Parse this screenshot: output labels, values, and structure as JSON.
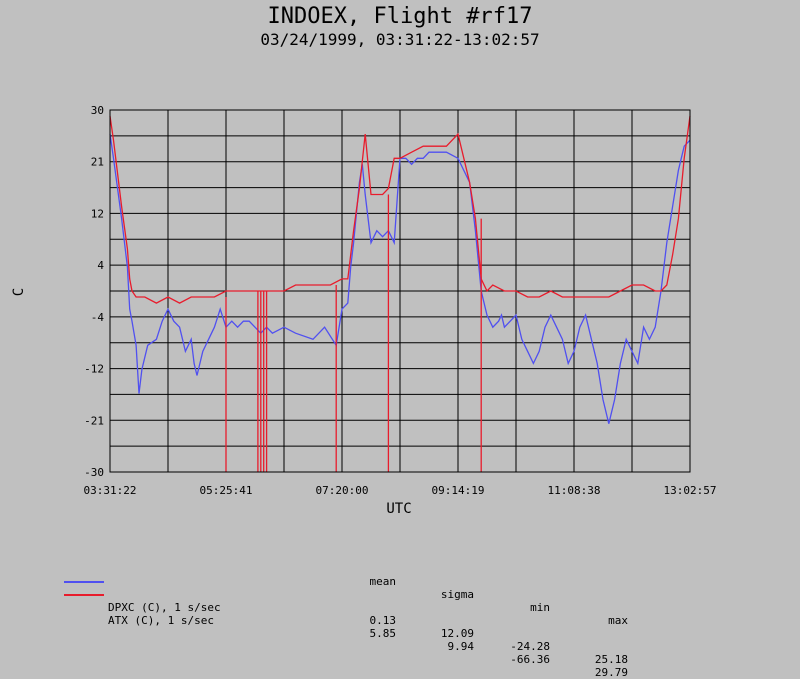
{
  "header": {
    "title": "INDOEX, Flight #rf17",
    "subtitle": "03/24/1999, 03:31:22-13:02:57"
  },
  "chart_data": {
    "type": "line",
    "xlabel": "UTC",
    "ylabel": "C",
    "x_ticks": [
      "03:31:22",
      "05:25:41",
      "07:20:00",
      "09:14:19",
      "11:08:38",
      "13:02:57"
    ],
    "y_ticks": [
      "30",
      "21",
      "12",
      "4",
      "-4",
      "-12",
      "-21",
      "-30"
    ],
    "ylim": [
      -30,
      30
    ],
    "grid": true,
    "legend_position": "bottom-left",
    "series": [
      {
        "name": "DPXC (C), 1 s/sec",
        "color": "#5050f0",
        "x_frac": [
          0,
          0.006,
          0.02,
          0.03,
          0.034,
          0.038,
          0.045,
          0.05,
          0.055,
          0.065,
          0.08,
          0.09,
          0.1,
          0.11,
          0.12,
          0.13,
          0.14,
          0.145,
          0.15,
          0.16,
          0.17,
          0.18,
          0.19,
          0.2,
          0.21,
          0.22,
          0.23,
          0.24,
          0.25,
          0.26,
          0.27,
          0.28,
          0.3,
          0.32,
          0.35,
          0.37,
          0.39,
          0.4,
          0.41,
          0.415,
          0.42,
          0.43,
          0.435,
          0.44,
          0.45,
          0.46,
          0.47,
          0.48,
          0.49,
          0.5,
          0.51,
          0.52,
          0.53,
          0.54,
          0.55,
          0.58,
          0.6,
          0.62,
          0.63,
          0.64,
          0.65,
          0.66,
          0.67,
          0.675,
          0.68,
          0.69,
          0.7,
          0.71,
          0.72,
          0.73,
          0.74,
          0.75,
          0.76,
          0.77,
          0.78,
          0.79,
          0.8,
          0.81,
          0.82,
          0.83,
          0.84,
          0.85,
          0.86,
          0.87,
          0.88,
          0.89,
          0.9,
          0.91,
          0.92,
          0.93,
          0.94,
          0.95,
          0.96,
          0.97,
          0.98,
          0.99,
          1.0
        ],
        "values": [
          26,
          22,
          12,
          4,
          -3,
          -5,
          -9,
          -17,
          -13,
          -9,
          -8,
          -5,
          -3,
          -5,
          -6,
          -10,
          -8,
          -12,
          -14,
          -10,
          -8,
          -6,
          -3,
          -6,
          -5,
          -6,
          -5,
          -5,
          -6,
          -7,
          -6,
          -7,
          -6,
          -7,
          -8,
          -6,
          -9,
          -3,
          -2,
          4,
          8,
          18,
          21,
          16,
          8,
          10,
          9,
          10,
          8,
          22,
          22,
          21,
          22,
          22,
          23,
          23,
          22,
          18,
          10,
          0,
          -4,
          -6,
          -5,
          -4,
          -6,
          -5,
          -4,
          -8,
          -10,
          -12,
          -10,
          -6,
          -4,
          -6,
          -8,
          -12,
          -10,
          -6,
          -4,
          -8,
          -12,
          -18,
          -22,
          -18,
          -12,
          -8,
          -10,
          -12,
          -6,
          -8,
          -6,
          0,
          8,
          14,
          20,
          24,
          25
        ]
      },
      {
        "name": "ATX (C), 1 s/sec",
        "color": "#e81c2c",
        "x_frac": [
          0,
          0.006,
          0.02,
          0.03,
          0.034,
          0.038,
          0.045,
          0.05,
          0.06,
          0.08,
          0.1,
          0.12,
          0.14,
          0.16,
          0.18,
          0.2,
          0.22,
          0.24,
          0.26,
          0.28,
          0.3,
          0.32,
          0.34,
          0.36,
          0.38,
          0.4,
          0.41,
          0.42,
          0.43,
          0.44,
          0.45,
          0.46,
          0.47,
          0.48,
          0.49,
          0.5,
          0.52,
          0.54,
          0.56,
          0.58,
          0.6,
          0.62,
          0.63,
          0.64,
          0.65,
          0.66,
          0.68,
          0.7,
          0.72,
          0.74,
          0.76,
          0.78,
          0.8,
          0.82,
          0.84,
          0.86,
          0.88,
          0.9,
          0.92,
          0.94,
          0.95,
          0.96,
          0.97,
          0.98,
          0.99,
          1.0
        ],
        "values": [
          29,
          25,
          14,
          7,
          2,
          0,
          -1,
          -1,
          -1,
          -2,
          -1,
          -2,
          -1,
          -1,
          -1,
          0,
          0,
          0,
          0,
          0,
          0,
          1,
          1,
          1,
          1,
          2,
          2,
          10,
          17,
          26,
          16,
          16,
          16,
          17,
          22,
          22,
          23,
          24,
          24,
          24,
          26,
          18,
          12,
          2,
          0,
          1,
          0,
          0,
          -1,
          -1,
          0,
          -1,
          -1,
          -1,
          -1,
          -1,
          0,
          1,
          1,
          0,
          0,
          1,
          6,
          12,
          22,
          29
        ],
        "dropouts_x_frac": [
          0.2,
          0.255,
          0.26,
          0.265,
          0.27,
          0.39,
          0.48,
          0.64
        ],
        "dropout_value": -30
      }
    ]
  },
  "stats": {
    "headers": [
      "mean",
      "sigma",
      "min",
      "max"
    ],
    "rows": [
      {
        "label": "DPXC (C), 1 s/sec",
        "mean": "0.13",
        "sigma": "12.09",
        "min": "-24.28",
        "max": "25.18",
        "color": "#5050f0"
      },
      {
        "label": "ATX (C), 1 s/sec",
        "mean": "5.85",
        "sigma": "9.94",
        "min": "-66.36",
        "max": "29.79",
        "color": "#e81c2c"
      }
    ]
  }
}
